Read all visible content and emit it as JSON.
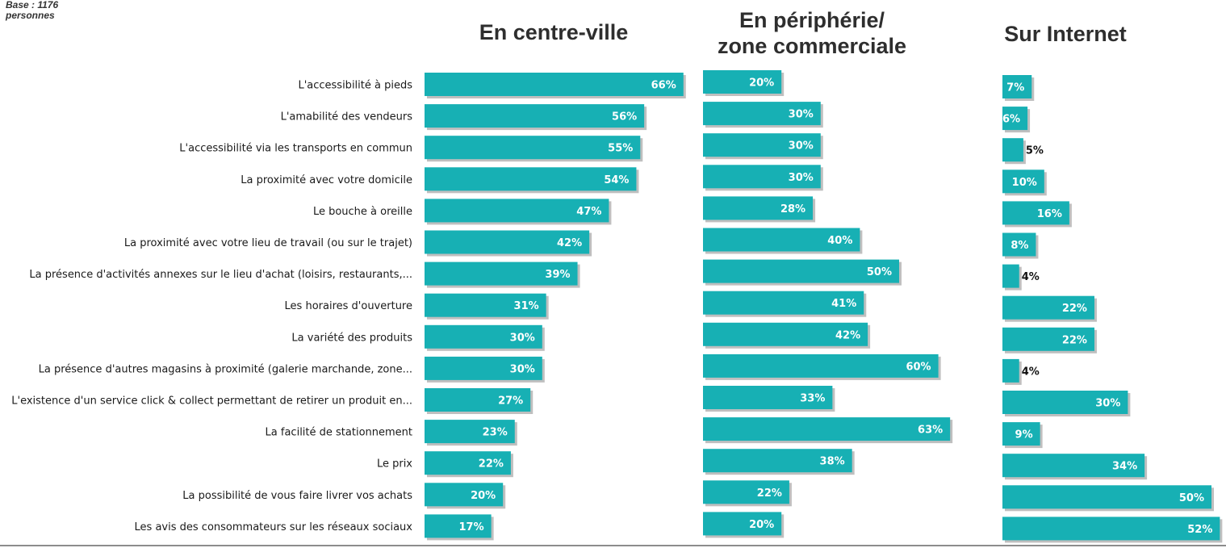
{
  "base_note": [
    "Base : 1176",
    "personnes"
  ],
  "panel_titles": [
    [
      "En centre-ville"
    ],
    [
      "En périphérie/",
      "zone commerciale"
    ],
    [
      "Sur Internet"
    ]
  ],
  "colors": {
    "bar": "#17b0b4",
    "shadow": "#8a8a8a",
    "label_inside": "#ffffff",
    "label_outside": "#111111",
    "text": "#1a1a1a"
  },
  "chart_data": {
    "type": "bar",
    "orientation": "horizontal",
    "categories": [
      "L'accessibilité à pieds",
      "L'amabilité des vendeurs",
      "L'accessibilité via les transports en commun",
      "La proximité avec votre domicile",
      "Le bouche à oreille",
      "La proximité avec votre lieu de travail (ou sur le trajet)",
      "La présence d'activités annexes sur le lieu d'achat (loisirs, restaurants,...",
      "Les horaires d'ouverture",
      "La variété des produits",
      "La présence d'autres magasins à proximité (galerie marchande, zone...",
      "L'existence d'un service click & collect permettant de retirer un produit en...",
      "La facilité de stationnement",
      "Le prix",
      "La possibilité de vous faire livrer vos achats",
      "Les avis des consommateurs sur les réseaux sociaux"
    ],
    "series": [
      {
        "name": "En centre-ville",
        "values": [
          66,
          56,
          55,
          54,
          47,
          42,
          39,
          31,
          30,
          30,
          27,
          23,
          22,
          20,
          17
        ]
      },
      {
        "name": "En périphérie/ zone commerciale",
        "values": [
          20,
          30,
          30,
          30,
          28,
          40,
          50,
          41,
          42,
          60,
          33,
          63,
          38,
          22,
          20
        ]
      },
      {
        "name": "Sur Internet",
        "values": [
          7,
          6,
          5,
          10,
          16,
          8,
          4,
          22,
          22,
          4,
          30,
          9,
          34,
          50,
          52
        ]
      }
    ],
    "value_suffix": "%"
  }
}
